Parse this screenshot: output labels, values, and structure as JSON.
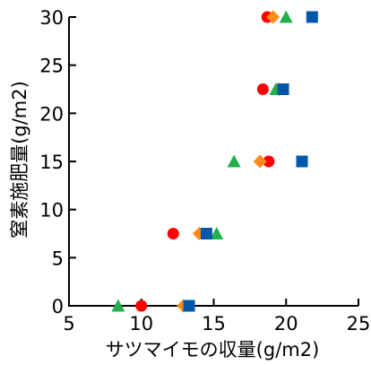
{
  "chart_data": {
    "type": "scatter",
    "title": "",
    "xlabel": "サツマイモの収量(g/m2)",
    "ylabel": "窒素施肥量(g/m2)",
    "xlim": [
      5,
      25
    ],
    "ylim": [
      0,
      30
    ],
    "xticks": [
      5,
      10,
      15,
      20,
      25
    ],
    "yticks": [
      0,
      5,
      10,
      15,
      20,
      25,
      30
    ],
    "grid": false,
    "legend": "none",
    "series": [
      {
        "marker": "circle",
        "color": "#ff0000",
        "points": [
          [
            10.0,
            0
          ],
          [
            12.2,
            7.5
          ],
          [
            18.8,
            15
          ],
          [
            18.4,
            22.5
          ],
          [
            18.7,
            30
          ]
        ]
      },
      {
        "marker": "diamond",
        "color": "#ff8c1a",
        "points": [
          [
            12.9,
            0
          ],
          [
            14.0,
            7.5
          ],
          [
            18.2,
            15
          ],
          [
            19.5,
            22.5
          ],
          [
            19.1,
            30
          ]
        ]
      },
      {
        "marker": "triangle",
        "color": "#22b14c",
        "points": [
          [
            8.4,
            0
          ],
          [
            15.2,
            7.5
          ],
          [
            16.4,
            15
          ],
          [
            19.3,
            22.5
          ],
          [
            20.0,
            30
          ]
        ]
      },
      {
        "marker": "square",
        "color": "#0057a8",
        "points": [
          [
            13.3,
            0
          ],
          [
            14.5,
            7.5
          ],
          [
            21.1,
            15
          ],
          [
            19.8,
            22.5
          ],
          [
            21.8,
            30
          ]
        ]
      }
    ]
  }
}
